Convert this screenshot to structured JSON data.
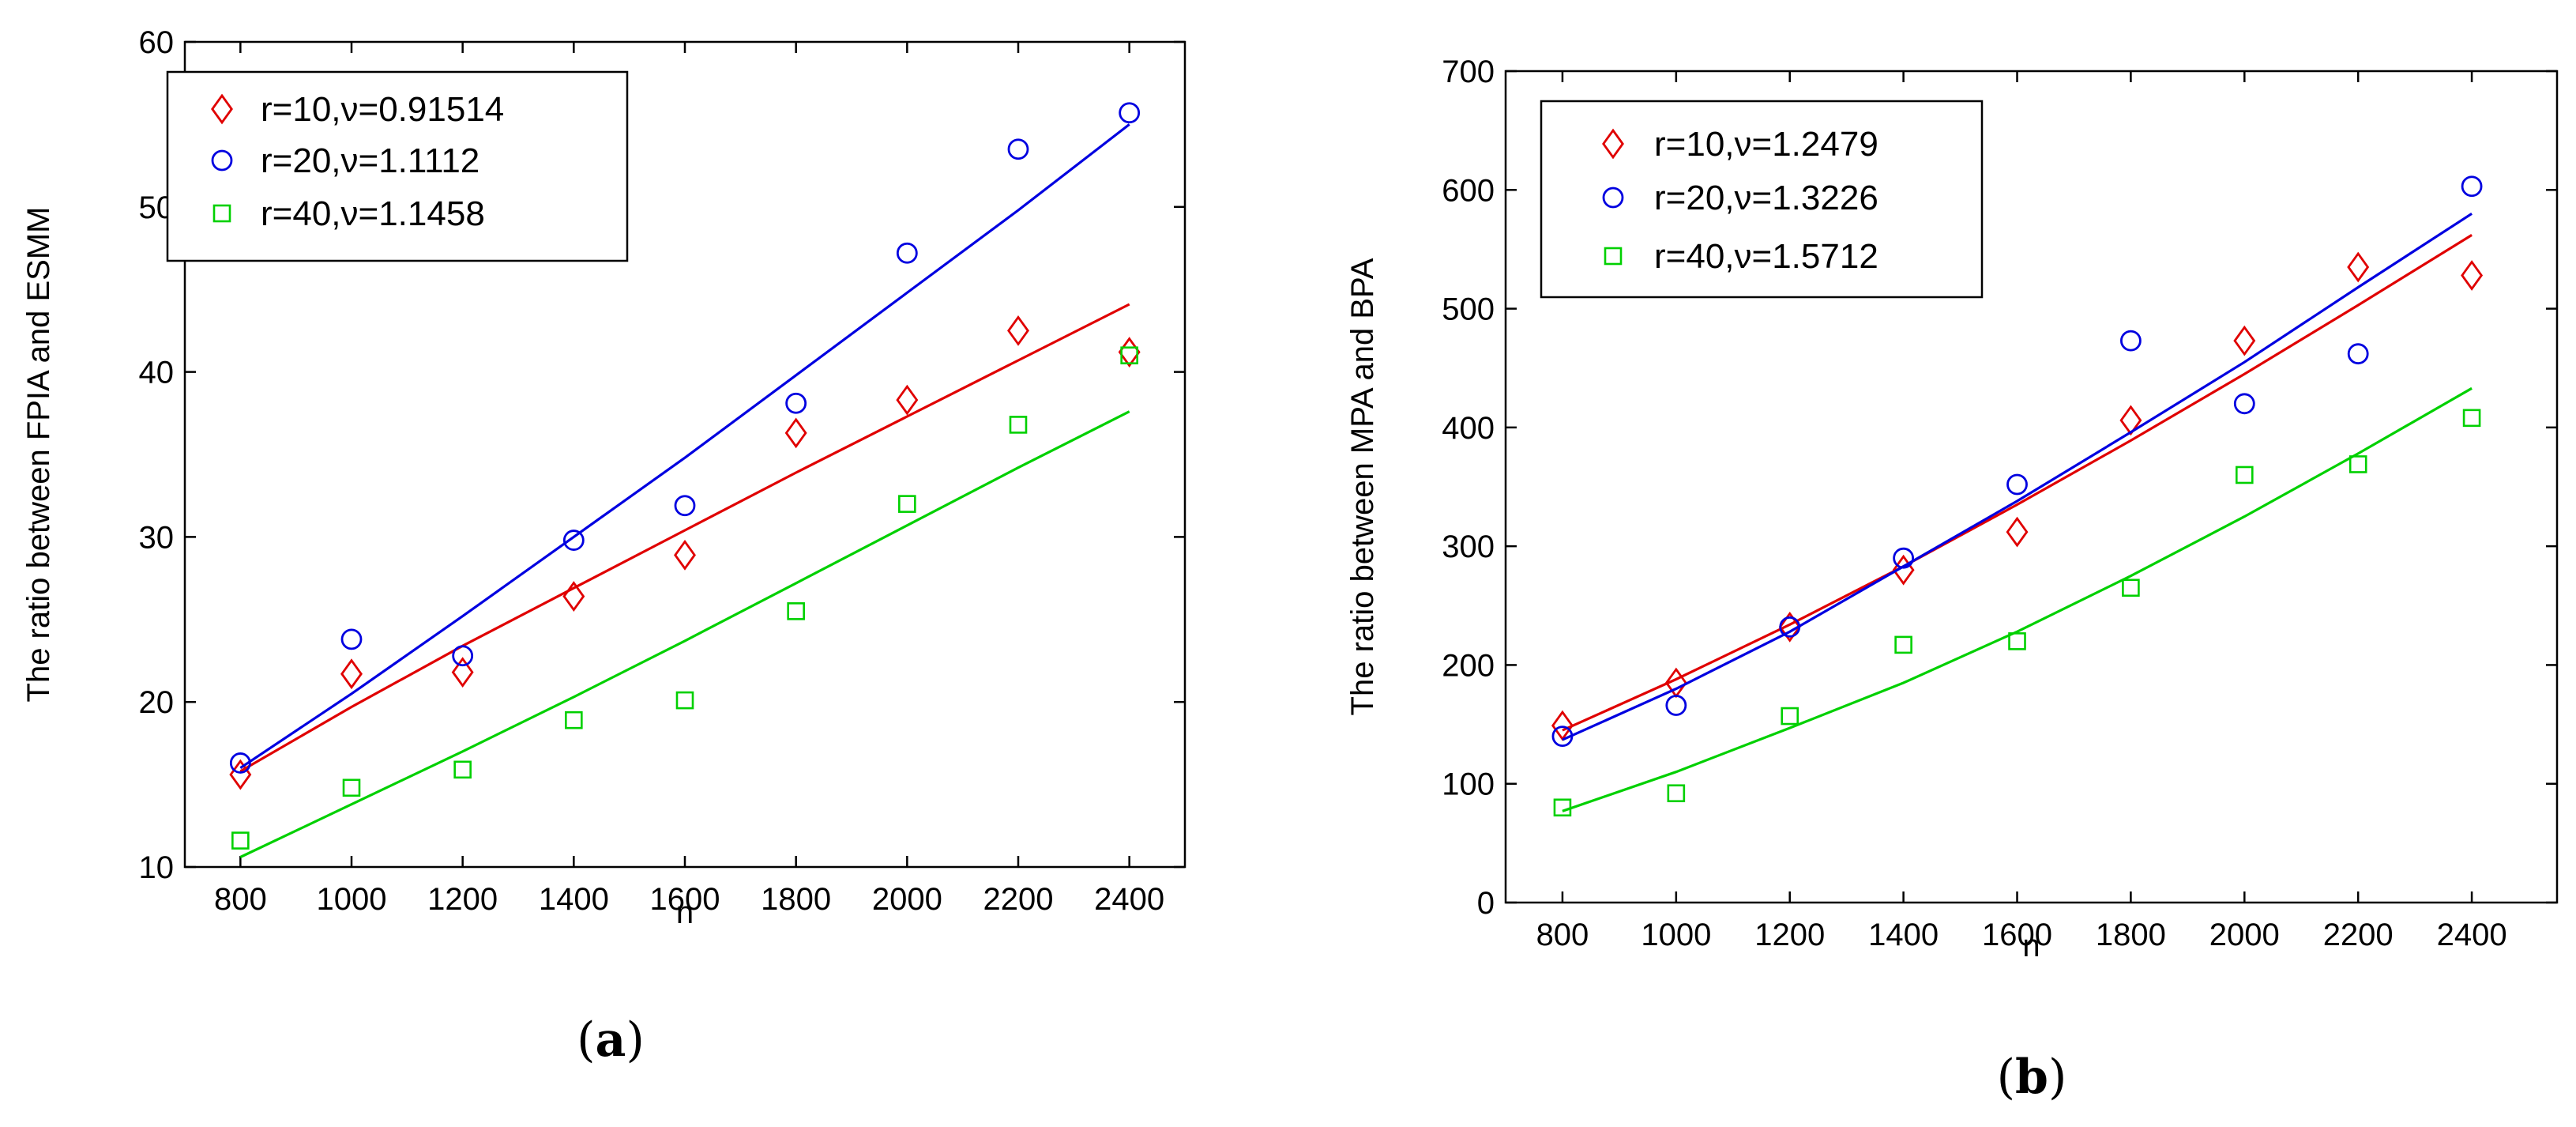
{
  "chart_data": [
    {
      "type": "scatter",
      "panel_label": "a",
      "xlabel": "n",
      "ylabel": "The ratio between FPIA and ESMM",
      "x": [
        800,
        1000,
        1200,
        1400,
        1600,
        1800,
        2000,
        2200,
        2400
      ],
      "xlim": [
        700,
        2500
      ],
      "ylim": [
        10,
        60
      ],
      "xticks": [
        800,
        1000,
        1200,
        1400,
        1600,
        1800,
        2000,
        2200,
        2400
      ],
      "yticks": [
        10,
        20,
        30,
        40,
        50,
        60
      ],
      "grid": false,
      "legend_position": "top-left",
      "series": [
        {
          "name": "r=10,ν=0.91514",
          "color": "#e00000",
          "marker": "diamond",
          "values": [
            15.6,
            21.7,
            21.8,
            26.4,
            28.9,
            36.3,
            38.3,
            42.5,
            41.2
          ],
          "fit": [
            15.8,
            19.7,
            23.4,
            26.9,
            30.4,
            33.9,
            37.3,
            40.7,
            44.1
          ]
        },
        {
          "name": "r=20,ν=1.1112",
          "color": "#0000e0",
          "marker": "circle",
          "values": [
            16.3,
            23.8,
            22.8,
            29.8,
            31.9,
            38.1,
            47.2,
            53.5,
            55.7
          ],
          "fit": [
            16.0,
            20.5,
            25.2,
            30.0,
            34.8,
            39.8,
            44.8,
            49.8,
            55.0
          ]
        },
        {
          "name": "r=40,ν=1.1458",
          "color": "#00d000",
          "marker": "square",
          "values": [
            11.6,
            14.8,
            15.9,
            18.9,
            20.1,
            25.5,
            32.0,
            36.8,
            41.0
          ],
          "fit": [
            10.6,
            13.8,
            17.0,
            20.3,
            23.7,
            27.2,
            30.7,
            34.2,
            37.6
          ]
        }
      ]
    },
    {
      "type": "scatter",
      "panel_label": "b",
      "xlabel": "n",
      "ylabel": "The ratio between MPA and BPA",
      "x": [
        800,
        1000,
        1200,
        1400,
        1600,
        1800,
        2000,
        2200,
        2400
      ],
      "xlim": [
        700,
        2550
      ],
      "ylim": [
        0,
        700
      ],
      "xticks": [
        800,
        1000,
        1200,
        1400,
        1600,
        1800,
        2000,
        2200,
        2400
      ],
      "yticks": [
        0,
        100,
        200,
        300,
        400,
        500,
        600,
        700
      ],
      "grid": false,
      "legend_position": "top-left",
      "series": [
        {
          "name": "r=10,ν=1.2479",
          "color": "#e00000",
          "marker": "diamond",
          "values": [
            149,
            185,
            232,
            280,
            312,
            406,
            473,
            535,
            528
          ],
          "fit": [
            145,
            188,
            234,
            283,
            335,
            389,
            445,
            503,
            562
          ]
        },
        {
          "name": "r=20,ν=1.3226",
          "color": "#0000e0",
          "marker": "circle",
          "values": [
            140,
            166,
            232,
            290,
            352,
            473,
            420,
            462,
            603
          ],
          "fit": [
            137,
            180,
            228,
            283,
            338,
            396,
            455,
            518,
            580
          ]
        },
        {
          "name": "r=40,ν=1.5712",
          "color": "#00d000",
          "marker": "square",
          "values": [
            80,
            92,
            157,
            217,
            220,
            265,
            360,
            369,
            408
          ],
          "fit": [
            77,
            110,
            147,
            185,
            228,
            275,
            325,
            378,
            433
          ]
        }
      ]
    }
  ]
}
